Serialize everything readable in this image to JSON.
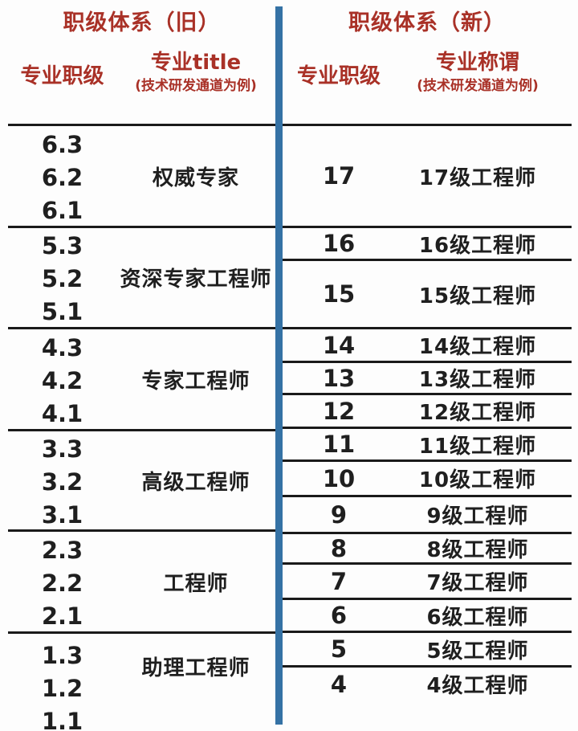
{
  "colors": {
    "accent_red": "#a93127",
    "divider_blue": "#3572a5",
    "line_dark": "#1a1a1a",
    "text_dark": "#1f1f1f",
    "background": "#fdfdfd"
  },
  "old_system": {
    "title": "职级体系（旧）",
    "columns": {
      "level": "专业职级",
      "title": "专业title",
      "title_note": "(技术研发通道为例)"
    },
    "groups": [
      {
        "levels": [
          "6.3",
          "6.2",
          "6.1"
        ],
        "title": "权威专家"
      },
      {
        "levels": [
          "5.3",
          "5.2",
          "5.1"
        ],
        "title": "资深专家工程师"
      },
      {
        "levels": [
          "4.3",
          "4.2",
          "4.1"
        ],
        "title": "专家工程师"
      },
      {
        "levels": [
          "3.3",
          "3.2",
          "3.1"
        ],
        "title": "高级工程师"
      },
      {
        "levels": [
          "2.3",
          "2.2",
          "2.1"
        ],
        "title": "工程师"
      },
      {
        "levels": [
          "1.3",
          "1.2",
          "1.1"
        ],
        "title": "助理工程师"
      }
    ]
  },
  "new_system": {
    "title": "职级体系（新）",
    "columns": {
      "level": "专业职级",
      "title": "专业称谓",
      "title_note": "(技术研发通道为例)"
    },
    "rows": [
      {
        "level": "17",
        "title": "17级工程师"
      },
      {
        "level": "16",
        "title": "16级工程师"
      },
      {
        "level": "15",
        "title": "15级工程师"
      },
      {
        "level": "14",
        "title": "14级工程师"
      },
      {
        "level": "13",
        "title": "13级工程师"
      },
      {
        "level": "12",
        "title": "12级工程师"
      },
      {
        "level": "11",
        "title": "11级工程师"
      },
      {
        "level": "10",
        "title": "10级工程师"
      },
      {
        "level": "9",
        "title": "9级工程师"
      },
      {
        "level": "8",
        "title": "8级工程师"
      },
      {
        "level": "7",
        "title": "7级工程师"
      },
      {
        "level": "6",
        "title": "6级工程师"
      },
      {
        "level": "5",
        "title": "5级工程师"
      },
      {
        "level": "4",
        "title": "4级工程师"
      }
    ]
  }
}
